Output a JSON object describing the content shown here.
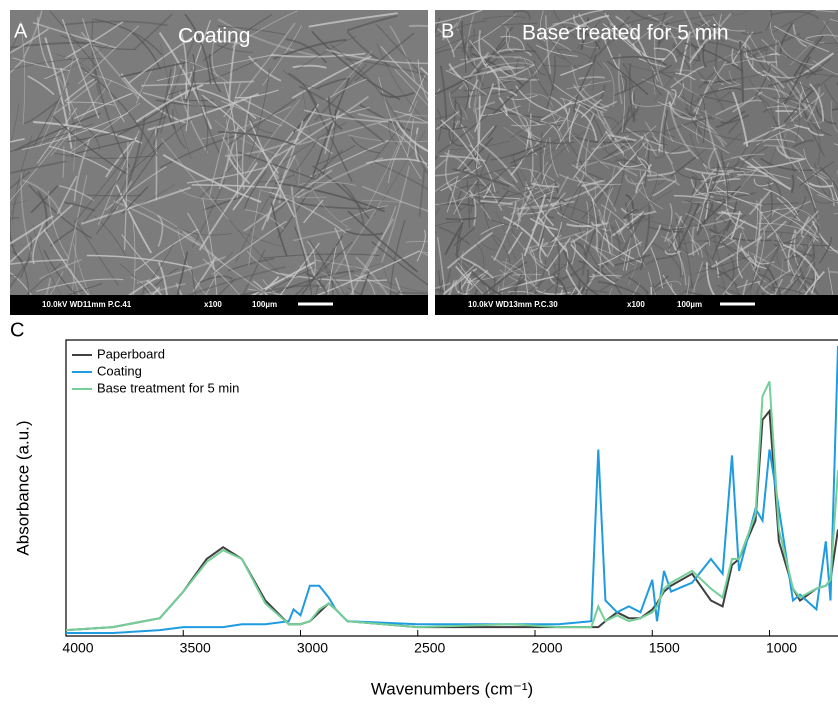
{
  "panels": [
    {
      "label": "A",
      "title": "Coating",
      "info": "10.0kV WD11mm P.C.41",
      "mag": "x100",
      "scale": "100µm"
    },
    {
      "label": "B",
      "title": "Base treated for 5 min",
      "info": "10.0kV WD13mm P.C.30",
      "mag": "x100",
      "scale": "100µm"
    }
  ],
  "chart_label": "C",
  "chart_data": {
    "type": "line",
    "xlabel": "Wavenumbers (cm⁻¹)",
    "ylabel": "Absorbance (a.u.)",
    "x": [
      4000,
      3800,
      3600,
      3500,
      3400,
      3330,
      3250,
      3150,
      3050,
      3030,
      3000,
      2960,
      2920,
      2880,
      2850,
      2800,
      2500,
      2100,
      1900,
      1760,
      1730,
      1700,
      1650,
      1600,
      1550,
      1500,
      1480,
      1450,
      1420,
      1330,
      1250,
      1200,
      1160,
      1130,
      1060,
      1030,
      1000,
      960,
      900,
      870,
      800,
      760,
      740,
      708
    ],
    "xlim": [
      4000,
      708
    ],
    "xticks": [
      4000,
      3500,
      3000,
      2500,
      2000,
      1500,
      1000
    ],
    "ylim": [
      0,
      1
    ],
    "legend": "upper-left",
    "series": [
      {
        "name": "Paperboard",
        "color": "#404040",
        "values": [
          0.02,
          0.03,
          0.06,
          0.15,
          0.26,
          0.3,
          0.26,
          0.12,
          0.04,
          0.04,
          0.04,
          0.05,
          0.08,
          0.11,
          0.09,
          0.05,
          0.03,
          0.03,
          0.03,
          0.03,
          0.03,
          0.05,
          0.08,
          0.06,
          0.06,
          0.09,
          0.11,
          0.15,
          0.17,
          0.21,
          0.12,
          0.1,
          0.24,
          0.26,
          0.39,
          0.73,
          0.76,
          0.32,
          0.16,
          0.12,
          0.16,
          0.17,
          0.19,
          0.36
        ]
      },
      {
        "name": "Coating",
        "color": "#1f9be0",
        "values": [
          0.01,
          0.01,
          0.02,
          0.03,
          0.03,
          0.03,
          0.04,
          0.04,
          0.05,
          0.09,
          0.07,
          0.17,
          0.17,
          0.13,
          0.09,
          0.05,
          0.04,
          0.04,
          0.04,
          0.05,
          0.63,
          0.12,
          0.08,
          0.1,
          0.08,
          0.19,
          0.05,
          0.22,
          0.15,
          0.18,
          0.26,
          0.21,
          0.61,
          0.22,
          0.43,
          0.39,
          0.63,
          0.43,
          0.12,
          0.14,
          0.09,
          0.32,
          0.12,
          0.98
        ]
      },
      {
        "name": "Base treatment for 5 min",
        "color": "#74cf98",
        "values": [
          0.02,
          0.03,
          0.06,
          0.15,
          0.25,
          0.29,
          0.26,
          0.11,
          0.04,
          0.04,
          0.04,
          0.05,
          0.09,
          0.11,
          0.09,
          0.05,
          0.03,
          0.04,
          0.03,
          0.03,
          0.1,
          0.05,
          0.07,
          0.05,
          0.06,
          0.08,
          0.1,
          0.16,
          0.18,
          0.22,
          0.16,
          0.13,
          0.26,
          0.26,
          0.41,
          0.81,
          0.86,
          0.36,
          0.16,
          0.13,
          0.16,
          0.17,
          0.19,
          0.56
        ]
      }
    ]
  }
}
